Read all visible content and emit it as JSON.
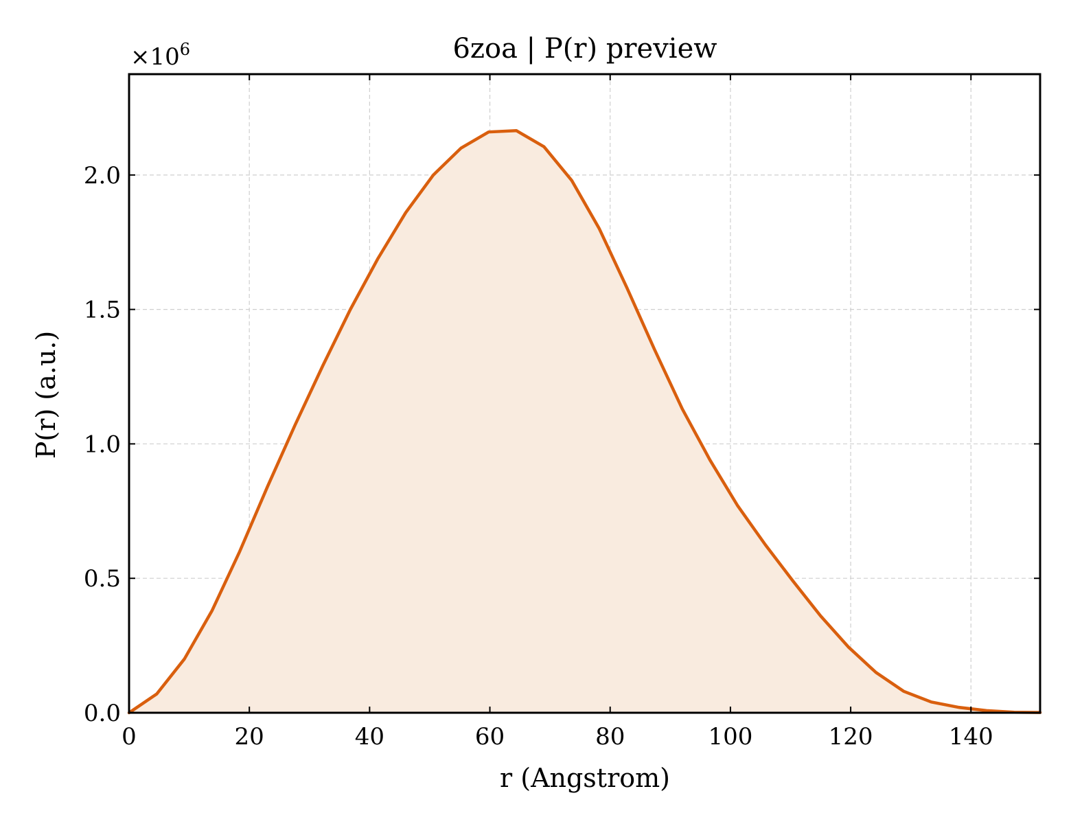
{
  "chart_data": {
    "type": "area",
    "title": "6zoa | P(r) preview",
    "xlabel": "r (Angstrom)",
    "ylabel": "P(r) (a.u.)",
    "y_multiplier": {
      "base": "×10",
      "exponent": "6"
    },
    "xlim": [
      0,
      151.5
    ],
    "ylim": [
      0,
      2.375
    ],
    "x_ticks": [
      0,
      20,
      40,
      60,
      80,
      100,
      120,
      140
    ],
    "x_tick_labels": [
      "0",
      "20",
      "40",
      "60",
      "80",
      "100",
      "120",
      "140"
    ],
    "y_ticks": [
      0,
      0.5,
      1.0,
      1.5,
      2.0
    ],
    "y_tick_labels": [
      "0.0",
      "0.5",
      "1.0",
      "1.5",
      "2.0"
    ],
    "grid": true,
    "series": [
      {
        "color": "#d95f0e",
        "fill_color": "#f9ebdf",
        "x": [
          0,
          4.6,
          9.2,
          13.8,
          18.4,
          23.0,
          27.6,
          32.2,
          36.8,
          41.4,
          46.0,
          50.6,
          55.2,
          59.8,
          64.4,
          69.0,
          73.6,
          78.2,
          82.8,
          87.4,
          92.0,
          96.6,
          101.2,
          105.8,
          110.4,
          115.0,
          119.6,
          124.2,
          128.8,
          133.4,
          138.0,
          142.6,
          147.2,
          151.5
        ],
        "y": [
          0.0,
          0.07,
          0.2,
          0.38,
          0.6,
          0.84,
          1.07,
          1.29,
          1.5,
          1.69,
          1.86,
          2.0,
          2.1,
          2.16,
          2.165,
          2.105,
          1.98,
          1.8,
          1.58,
          1.35,
          1.13,
          0.94,
          0.77,
          0.625,
          0.49,
          0.36,
          0.245,
          0.15,
          0.08,
          0.04,
          0.02,
          0.008,
          0.002,
          0.001
        ]
      }
    ]
  }
}
